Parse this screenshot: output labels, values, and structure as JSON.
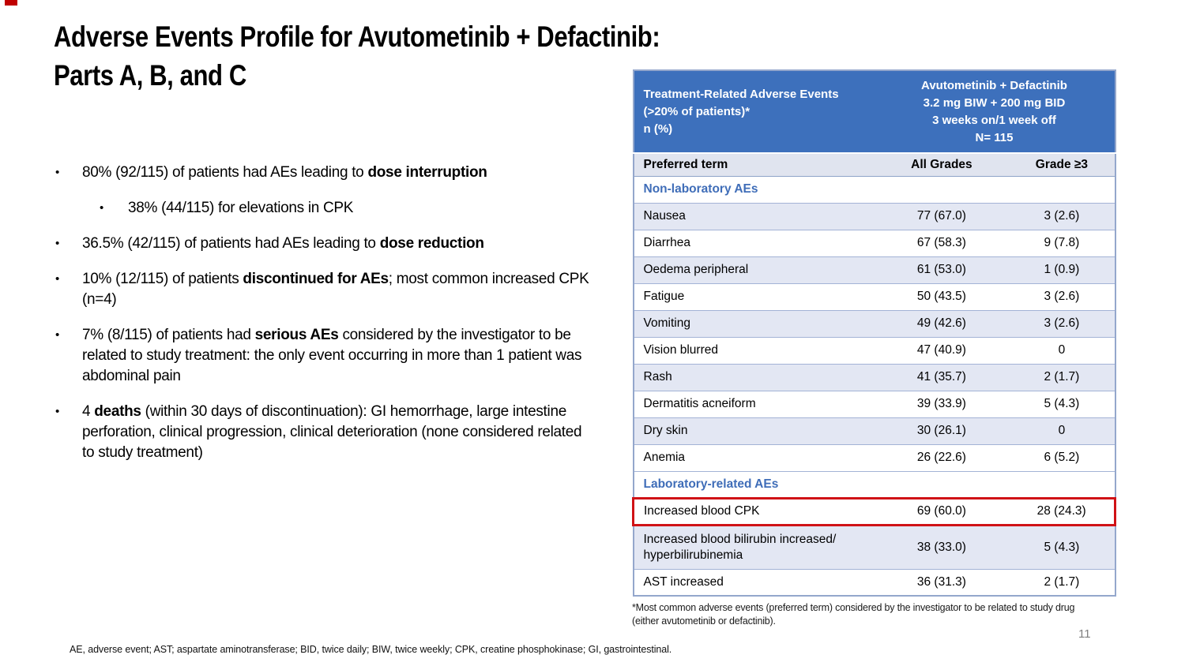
{
  "slide": {
    "title": "Adverse Events Profile for Avutometinib + Defactinib:\nParts A, B, and C",
    "page_number": "11",
    "abbreviations_footnote": "AE, adverse event; AST; aspartate aminotransferase; BID, twice daily; BIW, twice weekly; CPK, creatine phosphokinase; GI, gastrointestinal."
  },
  "bullets": [
    {
      "level": 1,
      "pre": "80% (92/115) of patients had AEs leading to ",
      "bold": "dose interruption",
      "post": ""
    },
    {
      "level": 2,
      "pre": "38% (44/115) for elevations in CPK",
      "bold": "",
      "post": ""
    },
    {
      "level": 1,
      "pre": "36.5% (42/115) of patients had AEs leading to ",
      "bold": "dose reduction",
      "post": ""
    },
    {
      "level": 1,
      "pre": "10%  (12/115) of patients ",
      "bold": "discontinued for AEs",
      "post": "; most common increased CPK (n=4)"
    },
    {
      "level": 1,
      "pre": "7% (8/115) of patients had ",
      "bold": "serious AEs",
      "post": " considered by the investigator to be related to study treatment: the only event occurring in more than 1 patient was abdominal pain"
    },
    {
      "level": 1,
      "pre": "4 ",
      "bold": "deaths",
      "post": " (within 30 days of discontinuation): GI hemorrhage, large intestine perforation, clinical progression, clinical deterioration (none considered related to study treatment)"
    }
  ],
  "table": {
    "header": {
      "left": "Treatment-Related Adverse Events\n(>20% of patients)*\nn (%)",
      "right": "Avutometinib + Defactinib\n3.2 mg BIW + 200 mg BID\n3 weeks on/1 week off\nN= 115"
    },
    "columns": [
      "Preferred term",
      "All Grades",
      "Grade ≥3"
    ],
    "rows": [
      {
        "type": "section",
        "term": "Non-laboratory AEs",
        "all": "",
        "g3": ""
      },
      {
        "type": "stripe",
        "term": "Nausea",
        "all": "77 (67.0)",
        "g3": "3 (2.6)"
      },
      {
        "type": "plain",
        "term": "Diarrhea",
        "all": "67 (58.3)",
        "g3": "9 (7.8)"
      },
      {
        "type": "stripe",
        "term": "Oedema peripheral",
        "all": "61 (53.0)",
        "g3": "1 (0.9)"
      },
      {
        "type": "plain",
        "term": "Fatigue",
        "all": "50 (43.5)",
        "g3": "3 (2.6)"
      },
      {
        "type": "stripe",
        "term": "Vomiting",
        "all": "49 (42.6)",
        "g3": "3 (2.6)"
      },
      {
        "type": "plain",
        "term": "Vision blurred",
        "all": "47 (40.9)",
        "g3": "0"
      },
      {
        "type": "stripe",
        "term": "Rash",
        "all": "41 (35.7)",
        "g3": "2 (1.7)"
      },
      {
        "type": "plain",
        "term": "Dermatitis acneiform",
        "all": "39 (33.9)",
        "g3": "5 (4.3)"
      },
      {
        "type": "stripe",
        "term": "Dry skin",
        "all": "30 (26.1)",
        "g3": "0"
      },
      {
        "type": "plain",
        "term": "Anemia",
        "all": "26 (22.6)",
        "g3": "6 (5.2)"
      },
      {
        "type": "section",
        "term": "Laboratory-related AEs",
        "all": "",
        "g3": ""
      },
      {
        "type": "highlight",
        "term": "Increased blood CPK",
        "all": "69 (60.0)",
        "g3": "28 (24.3)"
      },
      {
        "type": "stripe",
        "term": "Increased blood bilirubin increased/\nhyperbilirubinemia",
        "all": "38 (33.0)",
        "g3": "5 (4.3)"
      },
      {
        "type": "plain",
        "term": "AST increased",
        "all": "36 (31.3)",
        "g3": "2 (1.7)"
      }
    ],
    "footnote": "*Most common adverse events (preferred term) considered by the investigator to be related to study drug\n(either avutometinib or defactinib)."
  },
  "colors": {
    "header_blue": "#3d70bc",
    "stripe_row": "#e3e7f3",
    "subheader_bg": "#e0e4ef",
    "table_border": "#94a7cc",
    "section_text_blue": "#3f6db8",
    "highlight_red": "#d01216",
    "page_number_gray": "#7f7f7f",
    "corner_mark_red": "#c00000"
  }
}
